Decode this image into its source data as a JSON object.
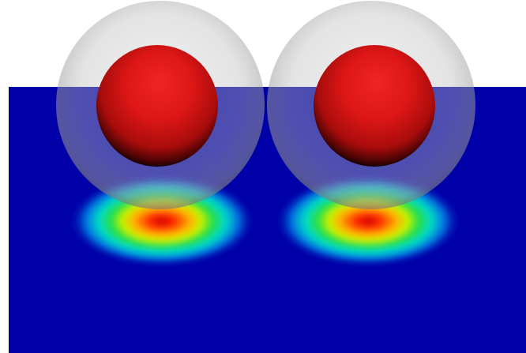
{
  "scene": {
    "background_color": "#ffffff",
    "plane_color": "#0000a8",
    "shell_color": "#c8c8c8",
    "core_color": "#e01818",
    "heatmap_colormap": [
      "#ff0000",
      "#ffff00",
      "#00ff00",
      "#00ffff",
      "#0000a8"
    ],
    "objects": [
      {
        "type": "core-sphere",
        "count": 2
      },
      {
        "type": "translucent-shell",
        "count": 2
      },
      {
        "type": "heat-spot",
        "count": 2
      }
    ]
  }
}
